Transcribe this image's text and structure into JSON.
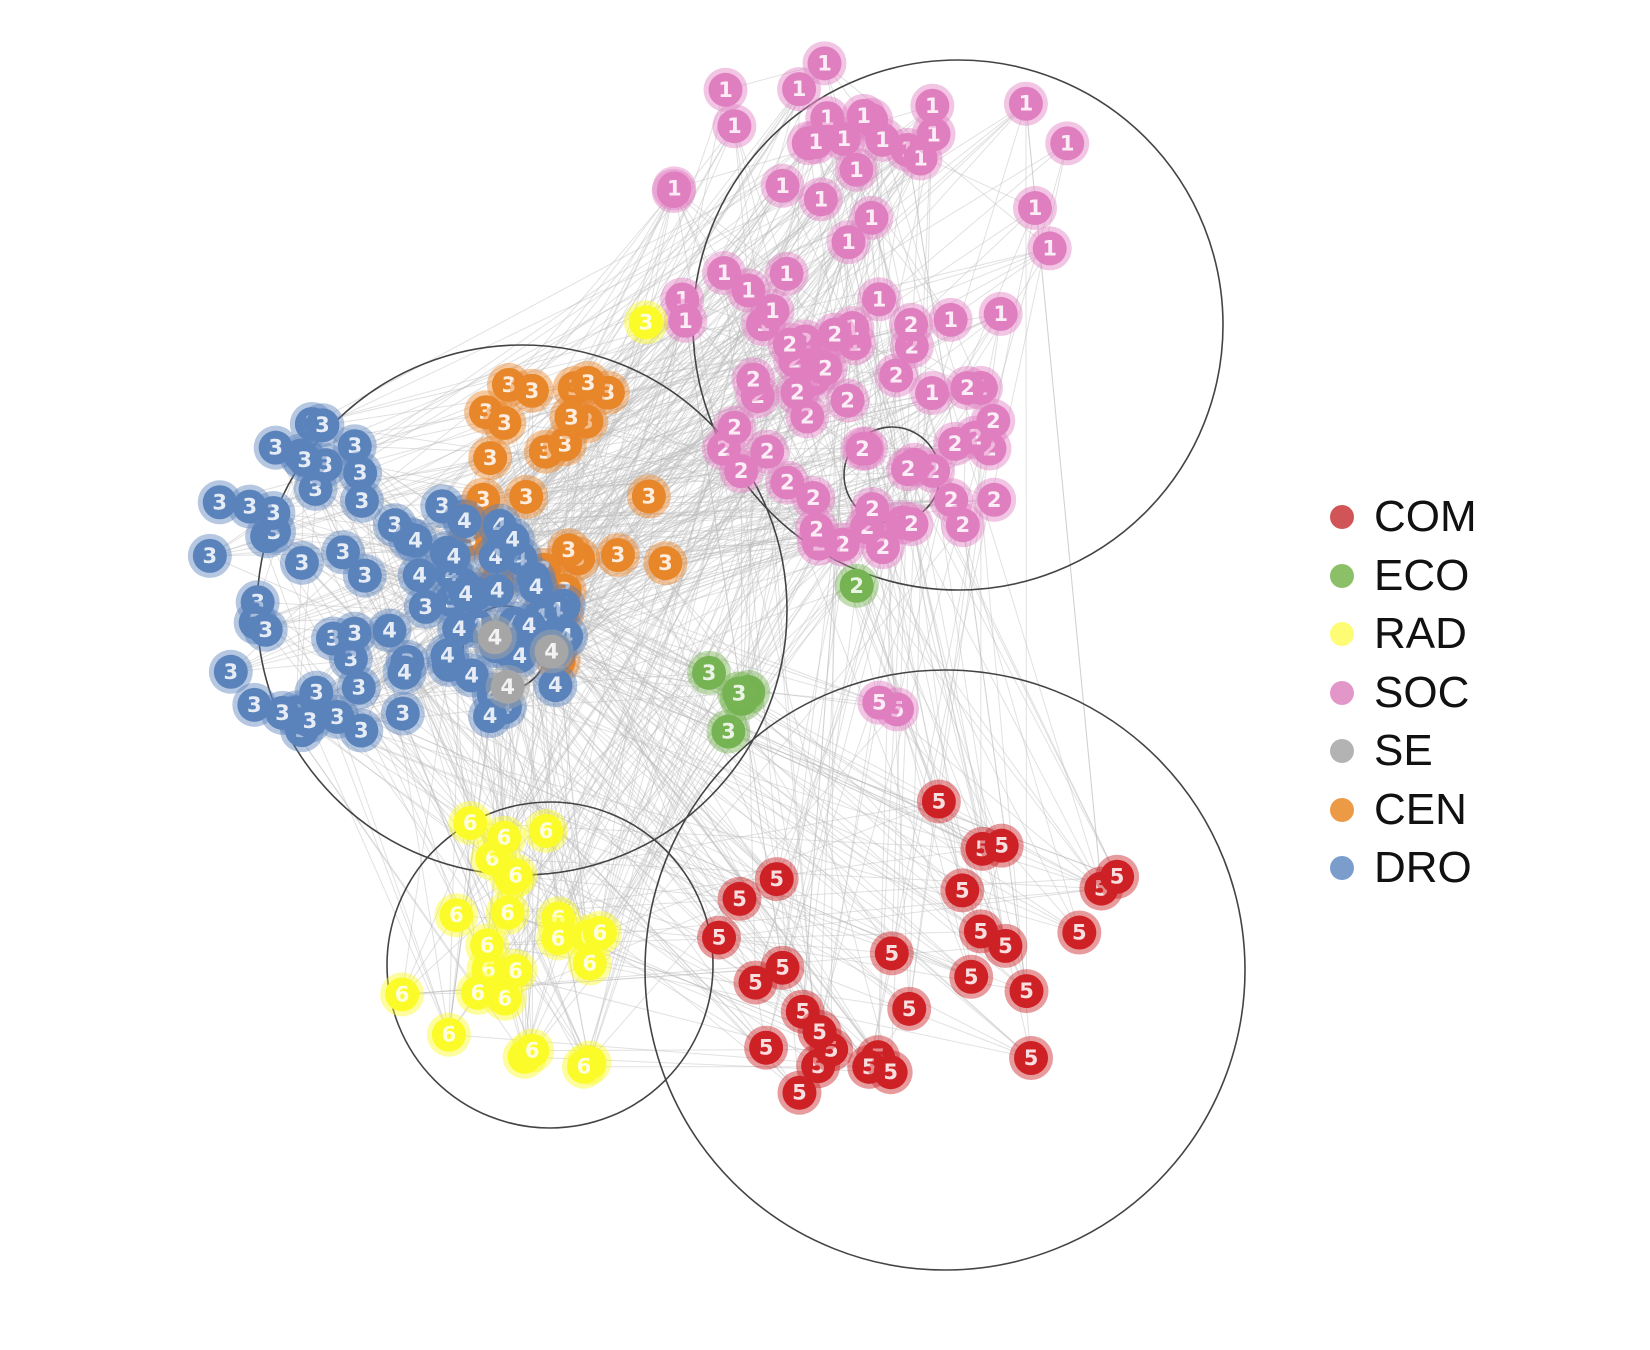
{
  "legend": {
    "items": [
      {
        "label": "COM",
        "color": "#d15457"
      },
      {
        "label": "ECO",
        "color": "#8cc068"
      },
      {
        "label": "RAD",
        "color": "#fefc74"
      },
      {
        "label": "SOC",
        "color": "#e397c9"
      },
      {
        "label": "SE",
        "color": "#b3b3b3"
      },
      {
        "label": "CEN",
        "color": "#ec9a45"
      },
      {
        "label": "DRO",
        "color": "#7a9dcc"
      }
    ]
  },
  "communities": [
    {
      "id": "1",
      "color": "#e07fc0",
      "node_count": 40
    },
    {
      "id": "2",
      "color": "#e07fc0",
      "node_count": 42
    },
    {
      "id": "3",
      "color": "#5a83bc",
      "node_count": 45
    },
    {
      "id": "3",
      "color": "#e8862a",
      "node_count": 28
    },
    {
      "id": "4",
      "color": "#5a83bc",
      "node_count": 40
    },
    {
      "id": "5",
      "color": "#cd2126",
      "node_count": 28
    },
    {
      "id": "6",
      "color": "#fbfb2a",
      "node_count": 24
    },
    {
      "id": "3",
      "color": "#76b352",
      "node_count": 5
    },
    {
      "id": "2",
      "color": "#76b352",
      "node_count": 1
    },
    {
      "id": "5",
      "color": "#e07fc0",
      "node_count": 2
    },
    {
      "id": "3",
      "color": "#fbfb2a",
      "node_count": 1
    },
    {
      "id": "4",
      "color": "#a6a6a6",
      "node_count": 3
    }
  ]
}
